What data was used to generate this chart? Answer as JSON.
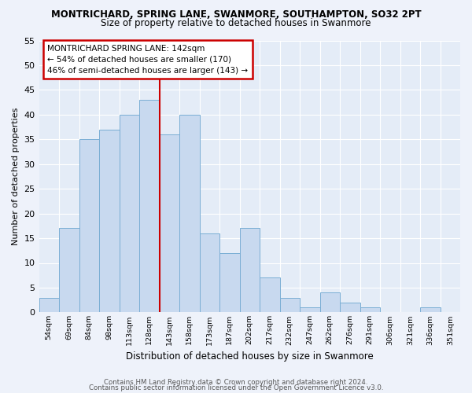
{
  "title": "MONTRICHARD, SPRING LANE, SWANMORE, SOUTHAMPTON, SO32 2PT",
  "subtitle": "Size of property relative to detached houses in Swanmore",
  "xlabel": "Distribution of detached houses by size in Swanmore",
  "ylabel": "Number of detached properties",
  "bar_labels": [
    "54sqm",
    "69sqm",
    "84sqm",
    "98sqm",
    "113sqm",
    "128sqm",
    "143sqm",
    "158sqm",
    "173sqm",
    "187sqm",
    "202sqm",
    "217sqm",
    "232sqm",
    "247sqm",
    "262sqm",
    "276sqm",
    "291sqm",
    "306sqm",
    "321sqm",
    "336sqm",
    "351sqm"
  ],
  "bar_values": [
    3,
    17,
    35,
    37,
    40,
    43,
    36,
    40,
    16,
    12,
    17,
    7,
    3,
    1,
    4,
    2,
    1,
    0,
    0,
    1,
    0
  ],
  "bar_color": "#c8d9ef",
  "bar_edge_color": "#7aaed4",
  "vline_color": "#cc0000",
  "annotation_title": "MONTRICHARD SPRING LANE: 142sqm",
  "annotation_line1": "← 54% of detached houses are smaller (170)",
  "annotation_line2": "46% of semi-detached houses are larger (143) →",
  "annotation_box_edge": "#cc0000",
  "ylim": [
    0,
    55
  ],
  "yticks": [
    0,
    5,
    10,
    15,
    20,
    25,
    30,
    35,
    40,
    45,
    50,
    55
  ],
  "footer1": "Contains HM Land Registry data © Crown copyright and database right 2024.",
  "footer2": "Contains public sector information licensed under the Open Government Licence v3.0.",
  "bg_color": "#eef2fa",
  "plot_bg_color": "#e4ecf7"
}
